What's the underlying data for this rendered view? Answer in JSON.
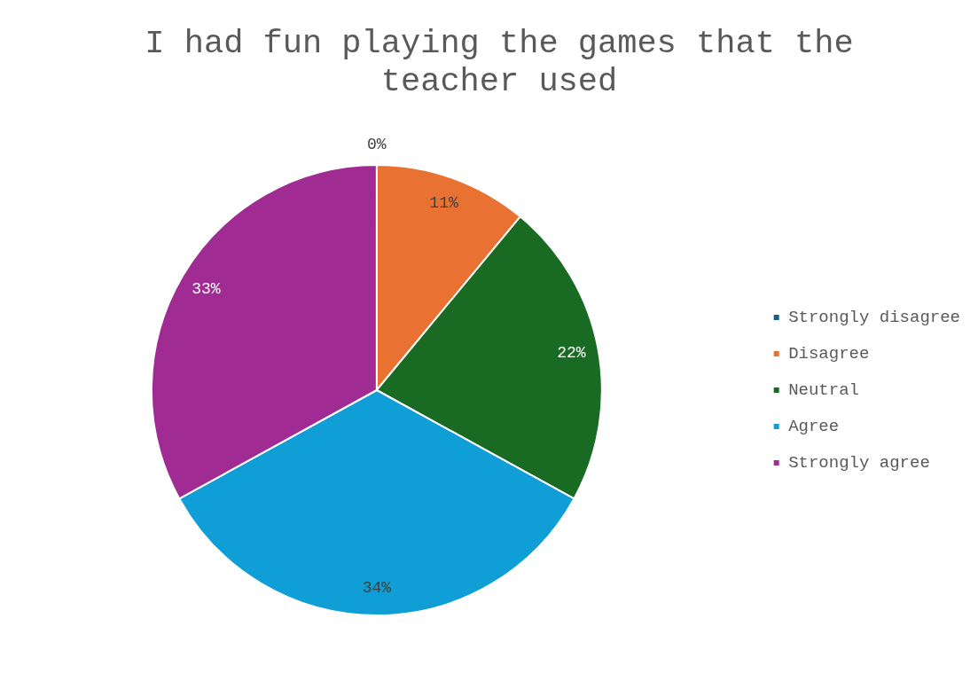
{
  "chart_data": {
    "type": "pie",
    "title": "I had fun playing the games that the teacher used",
    "categories": [
      "Strongly disagree",
      "Disagree",
      "Neutral",
      "Agree",
      "Strongly agree"
    ],
    "values": [
      0,
      11,
      22,
      34,
      33
    ],
    "colors": [
      "#156082",
      "#e97132",
      "#196b24",
      "#0f9ed5",
      "#a02b93"
    ],
    "value_labels": [
      "0%",
      "11%",
      "22%",
      "34%",
      "33%"
    ],
    "legend": "right"
  }
}
